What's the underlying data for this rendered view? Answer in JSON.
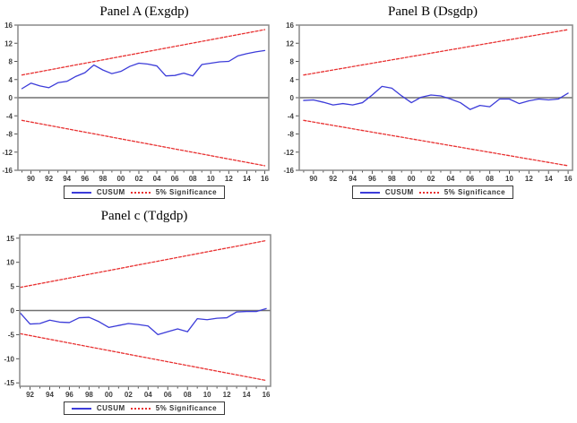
{
  "colors": {
    "cusum": "#3c3cd9",
    "significance": "#e83030",
    "frame": "#8a8a8a",
    "zero_line": "#707070",
    "tick": "#555555",
    "background": "#ffffff"
  },
  "chart_data": [
    {
      "type": "line",
      "title": "Panel A (Exgdp)",
      "xlim": [
        1988.55,
        2016.45
      ],
      "ylim": [
        -16,
        16
      ],
      "yticks": [
        16,
        12,
        8,
        4,
        0,
        -4,
        -8,
        -12,
        -16
      ],
      "x_ticks": [
        1990,
        1992,
        1994,
        1996,
        1998,
        2000,
        2002,
        2004,
        2006,
        2008,
        2010,
        2012,
        2014,
        2016
      ],
      "x_tick_labels": [
        "90",
        "92",
        "94",
        "96",
        "98",
        "00",
        "02",
        "04",
        "06",
        "08",
        "10",
        "12",
        "14",
        "16"
      ],
      "x_minor": [
        1989,
        2016
      ],
      "grid": false,
      "legend": [
        "CUSUM",
        "5% Significance"
      ],
      "legend_position": "bottom",
      "series": [
        {
          "name": "CUSUM",
          "color_key": "cusum",
          "style": "solid",
          "x_start": 1989,
          "y": [
            2.0,
            3.2,
            2.6,
            2.2,
            3.3,
            3.6,
            4.7,
            5.5,
            7.2,
            6.1,
            5.3,
            5.8,
            6.9,
            7.6,
            7.4,
            7.0,
            4.8,
            4.9,
            5.4,
            4.8,
            7.3,
            7.6,
            7.9,
            8.0,
            9.2,
            9.7,
            10.1,
            10.4
          ]
        },
        {
          "name": "5% Significance upper",
          "color_key": "significance",
          "style": "dashed",
          "x": [
            1989,
            2016
          ],
          "y": [
            5,
            15
          ]
        },
        {
          "name": "5% Significance lower",
          "color_key": "significance",
          "style": "dashed",
          "x": [
            1989,
            2016
          ],
          "y": [
            -5,
            -15
          ]
        }
      ]
    },
    {
      "type": "line",
      "title": "Panel B (Dsgdp)",
      "xlim": [
        1988.55,
        2016.45
      ],
      "ylim": [
        -16,
        16
      ],
      "yticks": [
        16,
        12,
        8,
        4,
        0,
        -4,
        -8,
        -12,
        -16
      ],
      "x_ticks": [
        1990,
        1992,
        1994,
        1996,
        1998,
        2000,
        2002,
        2004,
        2006,
        2008,
        2010,
        2012,
        2014,
        2016
      ],
      "x_tick_labels": [
        "90",
        "92",
        "94",
        "96",
        "98",
        "00",
        "02",
        "04",
        "06",
        "08",
        "10",
        "12",
        "14",
        "16"
      ],
      "x_minor": [
        1989,
        2016
      ],
      "grid": false,
      "legend": [
        "CUSUM",
        "5% Significance"
      ],
      "legend_position": "bottom",
      "series": [
        {
          "name": "CUSUM",
          "color_key": "cusum",
          "style": "solid",
          "x_start": 1989,
          "y": [
            -0.6,
            -0.5,
            -1.0,
            -1.6,
            -1.3,
            -1.6,
            -1.1,
            0.6,
            2.5,
            2.1,
            0.4,
            -1.1,
            0.1,
            0.6,
            0.4,
            -0.3,
            -1.1,
            -2.6,
            -1.7,
            -2.0,
            -0.3,
            -0.3,
            -1.3,
            -0.7,
            -0.3,
            -0.5,
            -0.3,
            1.0
          ]
        },
        {
          "name": "5% Significance upper",
          "color_key": "significance",
          "style": "dashed",
          "x": [
            1989,
            2016
          ],
          "y": [
            5,
            15
          ]
        },
        {
          "name": "5% Significance lower",
          "color_key": "significance",
          "style": "dashed",
          "x": [
            1989,
            2016
          ],
          "y": [
            -5,
            -15
          ]
        }
      ]
    },
    {
      "type": "line",
      "title": "Panel c (Tdgdp)",
      "xlim": [
        1990.95,
        2016.45
      ],
      "ylim": [
        -15.7,
        15.7
      ],
      "yticks": [
        15,
        10,
        5,
        0,
        -5,
        -10,
        -15
      ],
      "x_ticks": [
        1992,
        1994,
        1996,
        1998,
        2000,
        2002,
        2004,
        2006,
        2008,
        2010,
        2012,
        2014,
        2016
      ],
      "x_tick_labels": [
        "92",
        "94",
        "96",
        "98",
        "00",
        "02",
        "04",
        "06",
        "08",
        "10",
        "12",
        "14",
        "16"
      ],
      "x_minor": [
        1991,
        2016
      ],
      "grid": false,
      "legend": [
        "CUSUM",
        "5% Significance"
      ],
      "legend_position": "bottom",
      "series": [
        {
          "name": "CUSUM",
          "color_key": "cusum",
          "style": "solid",
          "x_start": 1991,
          "y": [
            -0.5,
            -2.8,
            -2.7,
            -2.0,
            -2.4,
            -2.5,
            -1.5,
            -1.4,
            -2.3,
            -3.5,
            -3.1,
            -2.7,
            -2.9,
            -3.2,
            -5.0,
            -4.4,
            -3.8,
            -4.4,
            -1.7,
            -1.9,
            -1.6,
            -1.5,
            -0.3,
            -0.2,
            -0.2,
            0.4
          ]
        },
        {
          "name": "5% Significance upper",
          "color_key": "significance",
          "style": "dashed",
          "x": [
            1991,
            2016
          ],
          "y": [
            4.8,
            14.5
          ]
        },
        {
          "name": "5% Significance lower",
          "color_key": "significance",
          "style": "dashed",
          "x": [
            1991,
            2016
          ],
          "y": [
            -4.8,
            -14.5
          ]
        }
      ]
    }
  ]
}
